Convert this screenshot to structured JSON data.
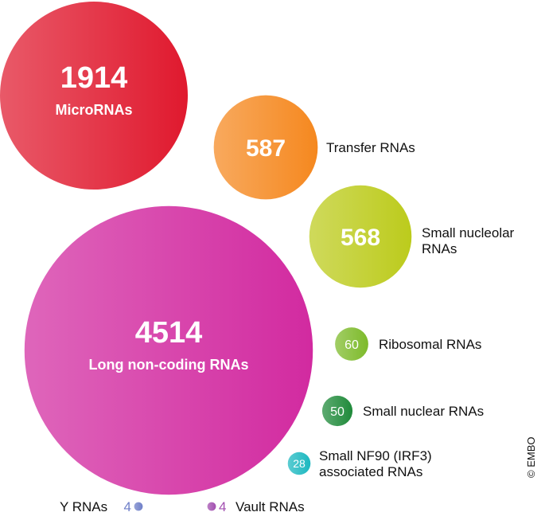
{
  "chart_data": {
    "type": "bubble",
    "categories": [
      "MicroRNAs",
      "Transfer RNAs",
      "Small nucleolar RNAs",
      "Long non-coding RNAs",
      "Ribosomal RNAs",
      "Small nuclear RNAs",
      "Small NF90 (IRF3) associated RNAs",
      "Y RNAs",
      "Vault RNAs"
    ],
    "values": [
      1914,
      587,
      568,
      4514,
      60,
      50,
      28,
      4,
      4
    ],
    "colors": [
      "#e0192e",
      "#f5881f",
      "#bccb1c",
      "#d22aa0",
      "#7dba2a",
      "#1f8a3a",
      "#1cb8c0",
      "#6f7fc8",
      "#a24fb0"
    ],
    "credit": "© EMBO"
  }
}
